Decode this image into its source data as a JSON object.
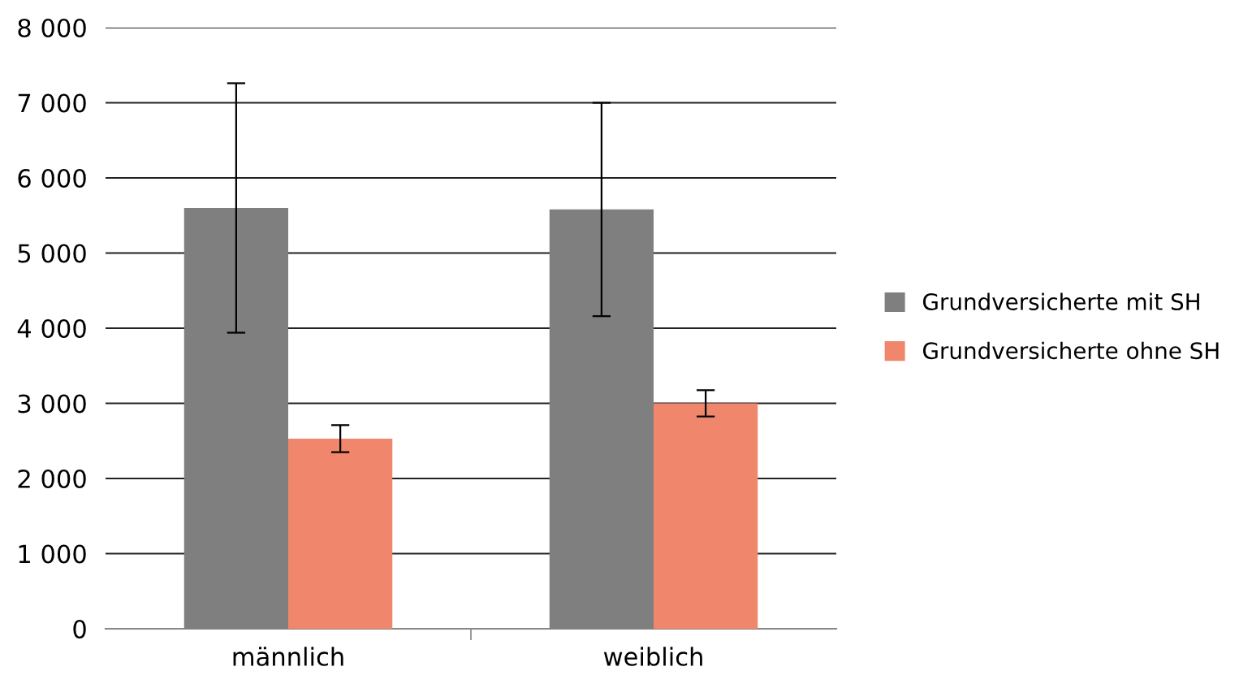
{
  "chart_data": {
    "type": "bar",
    "categories": [
      "männlich",
      "weiblich"
    ],
    "series": [
      {
        "name": "Grundversicherte mit SH",
        "color": "#7f7f7f",
        "values": [
          5600,
          5580
        ],
        "errors": [
          1660,
          1420
        ]
      },
      {
        "name": "Grundversicherte ohne SH",
        "color": "#f0876c",
        "values": [
          2530,
          3000
        ],
        "errors": [
          180,
          175
        ]
      }
    ],
    "ylim": [
      0,
      8000
    ],
    "yticks": [
      {
        "value": 0,
        "label": "0"
      },
      {
        "value": 1000,
        "label": "1 000"
      },
      {
        "value": 2000,
        "label": "2 000"
      },
      {
        "value": 3000,
        "label": "3 000"
      },
      {
        "value": 4000,
        "label": "4 000"
      },
      {
        "value": 5000,
        "label": "5 000"
      },
      {
        "value": 6000,
        "label": "6 000"
      },
      {
        "value": 7000,
        "label": "7 000"
      },
      {
        "value": 8000,
        "label": "8 000"
      }
    ],
    "grid": "y",
    "legend": "right"
  }
}
